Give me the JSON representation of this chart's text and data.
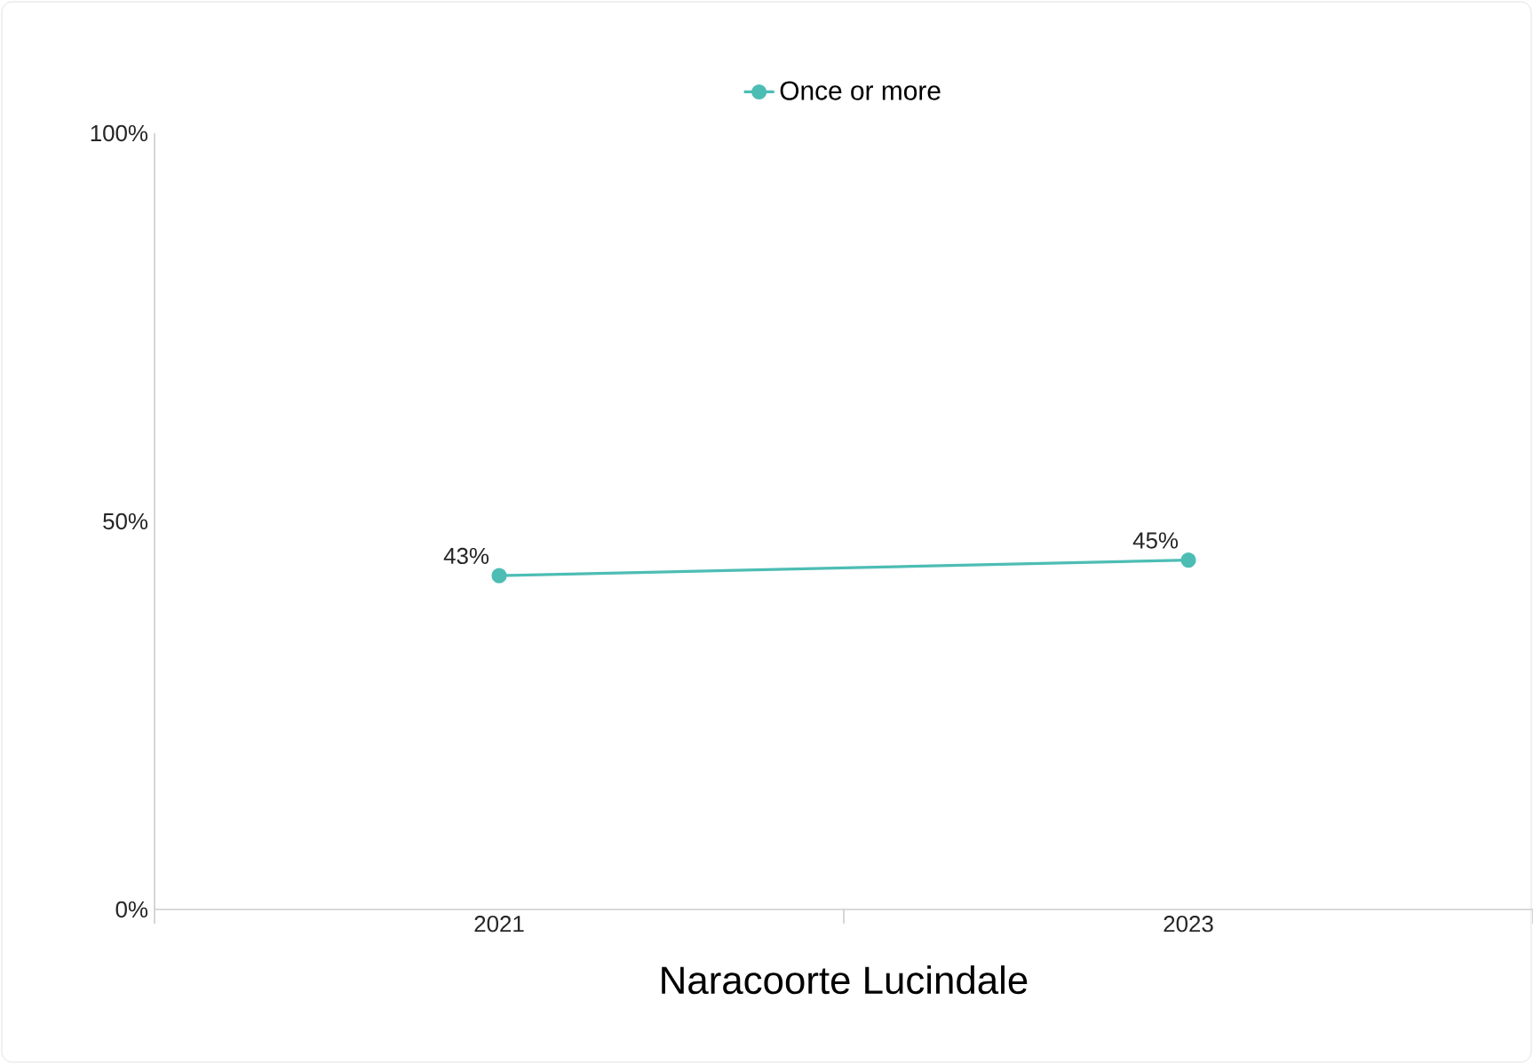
{
  "chart_data": {
    "type": "line",
    "xlabel": "Naracoorte Lucindale",
    "categories": [
      "2021",
      "2023"
    ],
    "series": [
      {
        "name": "Once or more",
        "color": "#4dbdb4",
        "values": [
          43,
          45
        ],
        "value_labels": [
          "43%",
          "45%"
        ]
      }
    ],
    "ylim": [
      0,
      100
    ],
    "yticks": [
      {
        "value": 0,
        "label": "0%"
      },
      {
        "value": 50,
        "label": "50%"
      },
      {
        "value": 100,
        "label": "100%"
      }
    ],
    "grid": false,
    "legend": "top",
    "marker": "circle",
    "line_style": "solid"
  }
}
